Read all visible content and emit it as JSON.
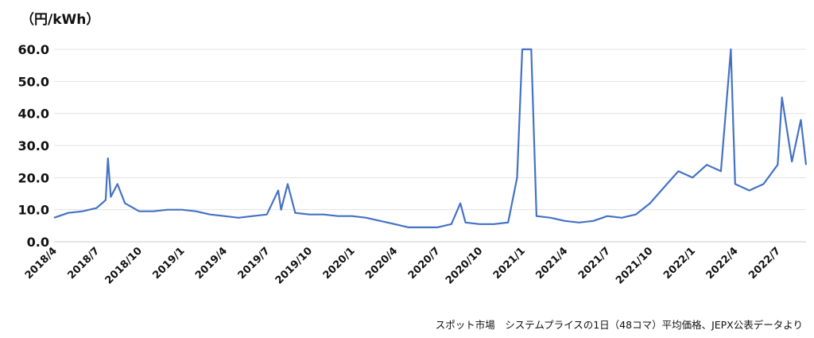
{
  "chart_data": {
    "type": "line",
    "title": "",
    "ylabel": "（円/kWh）",
    "xlabel": "",
    "ylim": [
      0,
      60
    ],
    "yticks": [
      0.0,
      10.0,
      20.0,
      30.0,
      40.0,
      50.0,
      60.0
    ],
    "xticks": [
      "2018/4",
      "2018/7",
      "2018/10",
      "2019/1",
      "2019/4",
      "2019/7",
      "2019/10",
      "2020/1",
      "2020/4",
      "2020/7",
      "2020/10",
      "2021/1",
      "2021/4",
      "2021/7",
      "2021/10",
      "2022/1",
      "2022/4",
      "2022/7"
    ],
    "grid": true,
    "legend": "none",
    "line_color": "#4472C4",
    "series": [
      {
        "x": [
          "2018/4",
          "2018/5",
          "2018/6",
          "2018/7",
          "2018/7/20",
          "2018/7/25",
          "2018/8",
          "2018/8/15",
          "2018/9",
          "2018/10",
          "2018/11",
          "2018/12",
          "2019/1",
          "2019/2",
          "2019/3",
          "2019/4",
          "2019/5",
          "2019/6",
          "2019/7",
          "2019/7/25",
          "2019/8",
          "2019/8/15",
          "2019/9",
          "2019/10",
          "2019/11",
          "2019/12",
          "2020/1",
          "2020/2",
          "2020/3",
          "2020/4",
          "2020/5",
          "2020/6",
          "2020/7",
          "2020/8",
          "2020/8/20",
          "2020/9",
          "2020/10",
          "2020/11",
          "2020/12",
          "2020/12/20",
          "2021/1/1",
          "2021/1/10",
          "2021/1/20",
          "2021/2",
          "2021/3",
          "2021/4",
          "2021/5",
          "2021/6",
          "2021/7",
          "2021/8",
          "2021/9",
          "2021/10",
          "2021/11",
          "2021/12",
          "2022/1",
          "2022/2",
          "2022/3",
          "2022/3/22",
          "2022/4",
          "2022/5",
          "2022/6",
          "2022/7",
          "2022/7/10",
          "2022/8",
          "2022/8/20",
          "2022/9"
        ],
        "values": [
          7.5,
          9.0,
          9.5,
          10.5,
          13.0,
          26.0,
          14.0,
          18.0,
          12.0,
          9.5,
          9.5,
          10.0,
          10.0,
          9.5,
          8.5,
          8.0,
          7.5,
          8.0,
          8.5,
          16.0,
          10.0,
          18.0,
          9.0,
          8.5,
          8.5,
          8.0,
          8.0,
          7.5,
          6.5,
          5.5,
          4.5,
          4.5,
          4.5,
          5.5,
          12.0,
          6.0,
          5.5,
          5.5,
          6.0,
          20.0,
          60.0,
          60.0,
          60.0,
          8.0,
          7.5,
          6.5,
          6.0,
          6.5,
          8.0,
          7.5,
          8.5,
          12.0,
          17.0,
          22.0,
          20.0,
          24.0,
          22.0,
          60.0,
          18.0,
          16.0,
          18.0,
          24.0,
          45.0,
          25.0,
          38.0,
          24.0
        ]
      }
    ]
  },
  "labels": {
    "unit": "（円/kWh）",
    "source": "スポット市場　システムプライスの1日（48コマ）平均価格、JEPX公表データより"
  }
}
